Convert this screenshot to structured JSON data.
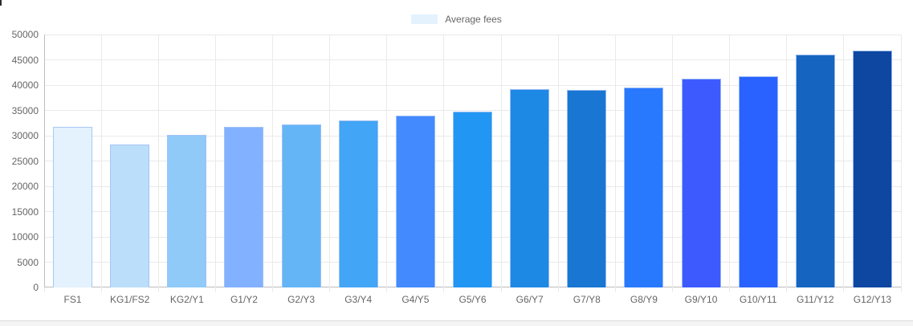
{
  "legend": {
    "label": "Average fees",
    "swatch_color": "#E3F2FD"
  },
  "chart_data": {
    "type": "bar",
    "title": "",
    "xlabel": "",
    "ylabel": "",
    "legend_position": "top",
    "grid": true,
    "categories": [
      "FS1",
      "KG1/FS2",
      "KG2/Y1",
      "G1/Y2",
      "G2/Y3",
      "G3/Y4",
      "G4/Y5",
      "G5/Y6",
      "G6/Y7",
      "G7/Y8",
      "G8/Y9",
      "G9/Y10",
      "G10/Y11",
      "G11/Y12",
      "G12/Y13"
    ],
    "series": [
      {
        "name": "Average fees",
        "values": [
          31800,
          28200,
          30100,
          31800,
          32300,
          33000,
          33900,
          34700,
          39200,
          39000,
          39500,
          41300,
          41700,
          46100,
          46800
        ]
      }
    ],
    "bar_colors": [
      "#E3F2FD",
      "#BBDEFB",
      "#90CAF9",
      "#82B1FF",
      "#64B5F6",
      "#42A5F5",
      "#448AFF",
      "#2196F3",
      "#1E88E5",
      "#1976D2",
      "#2979FF",
      "#3D5AFE",
      "#2962FF",
      "#1565C0",
      "#0D47A1"
    ],
    "ylim": [
      0,
      50000
    ],
    "ytick_step": 5000,
    "ytick_labels": [
      "0",
      "5000",
      "10000",
      "15000",
      "20000",
      "25000",
      "30000",
      "35000",
      "40000",
      "45000",
      "50000"
    ]
  },
  "colors": {
    "grid": "#eaeaea",
    "axis": "#bdbdbd",
    "tick_text": "#666666",
    "bar_border": "rgba(163,193,245,0.9)",
    "bottom_strip_bg": "#f4f4f4",
    "bottom_strip_border": "#dcdcdc"
  }
}
